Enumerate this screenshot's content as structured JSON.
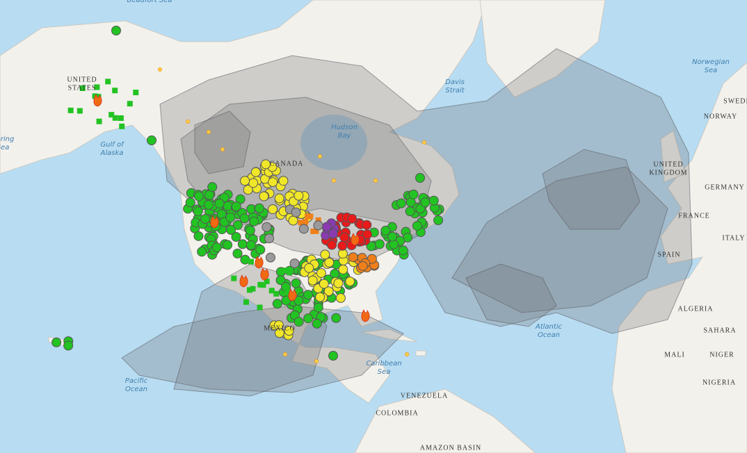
{
  "map": {
    "labels": [
      {
        "lines": [
          "Beaufort Sea"
        ],
        "kind": "ocean"
      },
      {
        "lines": [
          "UNITED",
          "STATES"
        ],
        "kind": "country"
      },
      {
        "lines": [
          "Gulf of",
          "Alaska"
        ],
        "kind": "ocean"
      },
      {
        "lines": [
          "Bering",
          "Sea"
        ],
        "kind": "ocean"
      },
      {
        "lines": [
          "Davis",
          "Strait"
        ],
        "kind": "ocean"
      },
      {
        "lines": [
          "Hudson",
          "Bay"
        ],
        "kind": "ocean"
      },
      {
        "lines": [
          "CANADA"
        ],
        "kind": "country"
      },
      {
        "lines": [
          "Norwegian",
          "Sea"
        ],
        "kind": "ocean"
      },
      {
        "lines": [
          "SWEDEN"
        ],
        "kind": "country"
      },
      {
        "lines": [
          "NORWAY"
        ],
        "kind": "country"
      },
      {
        "lines": [
          "UNITED",
          "KINGDOM"
        ],
        "kind": "country"
      },
      {
        "lines": [
          "GERMANY"
        ],
        "kind": "country"
      },
      {
        "lines": [
          "FRANCE"
        ],
        "kind": "country"
      },
      {
        "lines": [
          "ITALY"
        ],
        "kind": "country"
      },
      {
        "lines": [
          "SPAIN"
        ],
        "kind": "country"
      },
      {
        "lines": [
          "ALGERIA"
        ],
        "kind": "country"
      },
      {
        "lines": [
          "SAHARA"
        ],
        "kind": "country"
      },
      {
        "lines": [
          "MALI"
        ],
        "kind": "country"
      },
      {
        "lines": [
          "NIGER"
        ],
        "kind": "country"
      },
      {
        "lines": [
          "NIGERIA"
        ],
        "kind": "country"
      },
      {
        "lines": [
          "MEXICO"
        ],
        "kind": "country"
      },
      {
        "lines": [
          "Caribbean",
          "Sea"
        ],
        "kind": "ocean"
      },
      {
        "lines": [
          "Atlantic",
          "Ocean"
        ],
        "kind": "ocean"
      },
      {
        "lines": [
          "Pacific",
          "Ocean"
        ],
        "kind": "ocean"
      },
      {
        "lines": [
          "VENEZUELA"
        ],
        "kind": "country"
      },
      {
        "lines": [
          "COLOMBIA"
        ],
        "kind": "country"
      },
      {
        "lines": [
          "AMAZON BASIN"
        ],
        "kind": "country"
      }
    ]
  }
}
